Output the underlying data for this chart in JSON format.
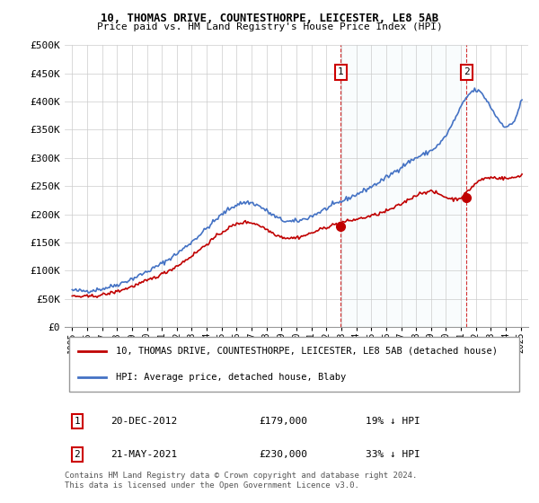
{
  "title": "10, THOMAS DRIVE, COUNTESTHORPE, LEICESTER, LE8 5AB",
  "subtitle": "Price paid vs. HM Land Registry's House Price Index (HPI)",
  "ylabel_ticks": [
    "£0",
    "£50K",
    "£100K",
    "£150K",
    "£200K",
    "£250K",
    "£300K",
    "£350K",
    "£400K",
    "£450K",
    "£500K"
  ],
  "ytick_values": [
    0,
    50000,
    100000,
    150000,
    200000,
    250000,
    300000,
    350000,
    400000,
    450000,
    500000
  ],
  "hpi_color": "#4472C4",
  "price_color": "#C00000",
  "purchase1_x": 2012.97,
  "purchase1_y": 179000,
  "purchase2_x": 2021.38,
  "purchase2_y": 230000,
  "vline1_x": 2012.97,
  "vline2_x": 2021.38,
  "legend_line1": "10, THOMAS DRIVE, COUNTESTHORPE, LEICESTER, LE8 5AB (detached house)",
  "legend_line2": "HPI: Average price, detached house, Blaby",
  "table_row1": [
    "1",
    "20-DEC-2012",
    "£179,000",
    "19% ↓ HPI"
  ],
  "table_row2": [
    "2",
    "21-MAY-2021",
    "£230,000",
    "33% ↓ HPI"
  ],
  "footer": "Contains HM Land Registry data © Crown copyright and database right 2024.\nThis data is licensed under the Open Government Licence v3.0.",
  "xlim": [
    1994.5,
    2025.5
  ],
  "ylim": [
    0,
    500000
  ],
  "bg_color": "#FFFFFF",
  "plot_bg": "#FFFFFF",
  "grid_color": "#CCCCCC"
}
